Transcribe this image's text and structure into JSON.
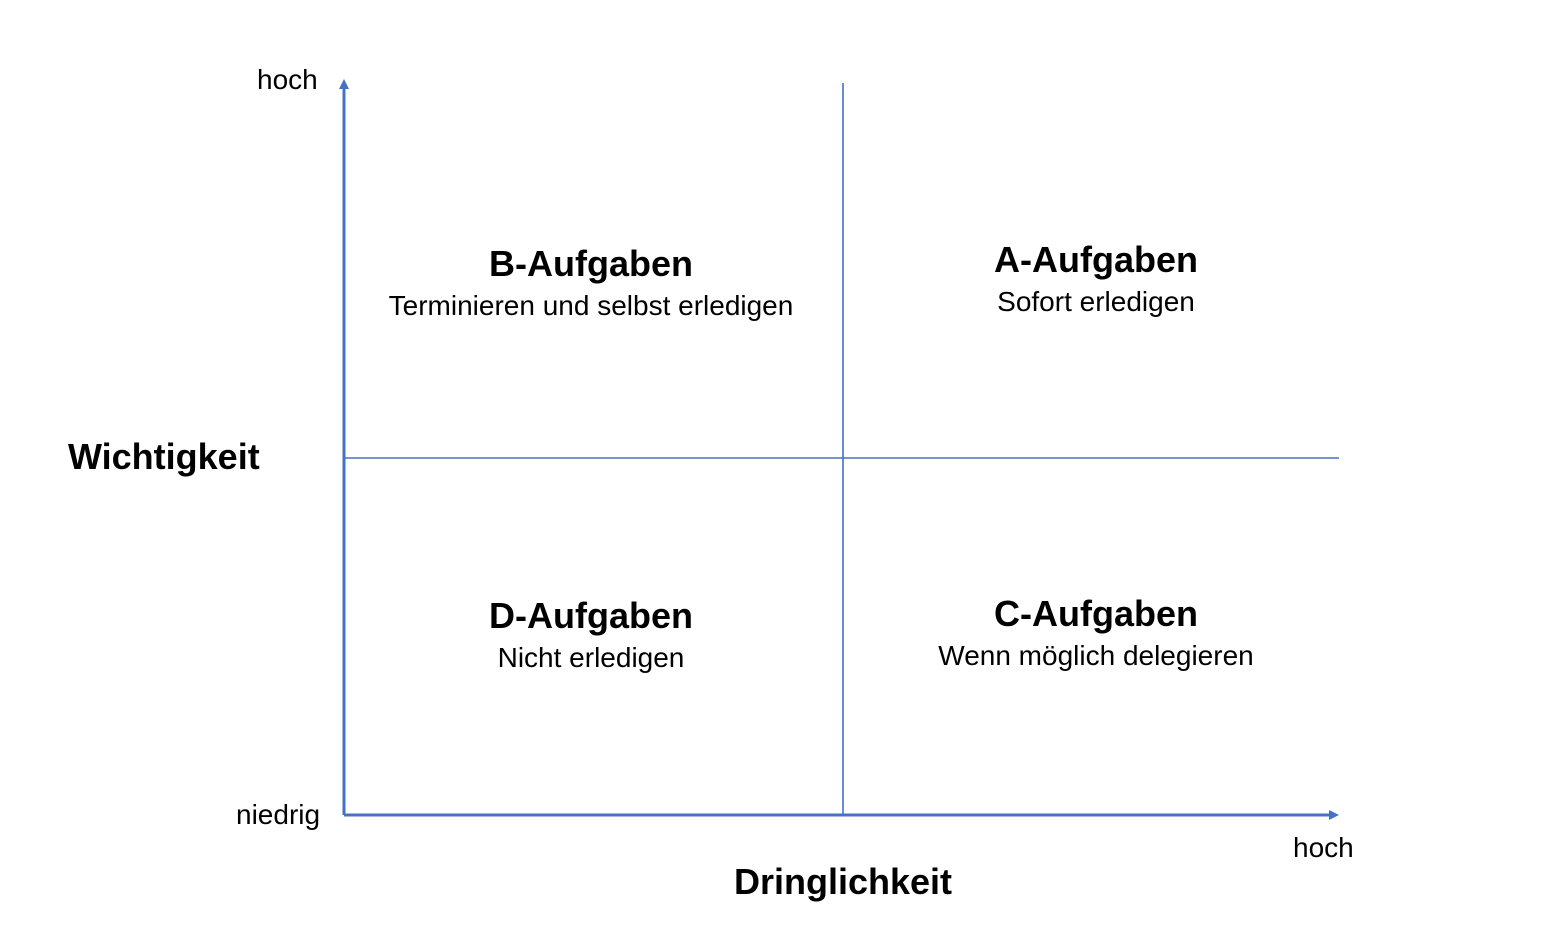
{
  "colors": {
    "axis_line": "#4472C4",
    "text": "#000000",
    "background": "#ffffff"
  },
  "y_axis": {
    "title": "Wichtigkeit",
    "high_label": "hoch",
    "low_label": "niedrig"
  },
  "x_axis": {
    "title": "Dringlichkeit",
    "high_label": "hoch"
  },
  "quadrants": {
    "top_left": {
      "title": "B-Aufgaben",
      "subtitle": "Terminieren und selbst erledigen"
    },
    "top_right": {
      "title": "A-Aufgaben",
      "subtitle": "Sofort erledigen"
    },
    "bottom_left": {
      "title": "D-Aufgaben",
      "subtitle": "Nicht erledigen"
    },
    "bottom_right": {
      "title": "C-Aufgaben",
      "subtitle": "Wenn möglich delegieren"
    }
  }
}
